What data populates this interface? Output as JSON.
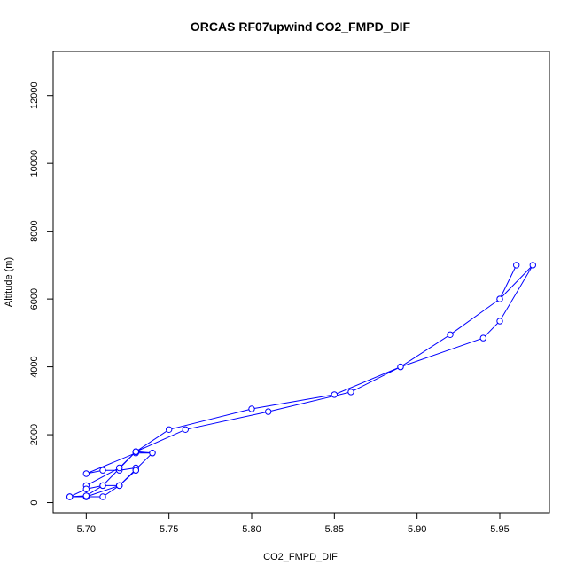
{
  "chart_data": {
    "type": "line",
    "title": "ORCAS RF07upwind CO2_FMPD_DIF",
    "xlabel": "CO2_FMPD_DIF",
    "ylabel": "Altitude (m)",
    "xlim": [
      5.68,
      5.98
    ],
    "ylim": [
      -300,
      13300
    ],
    "xticks": [
      5.7,
      5.75,
      5.8,
      5.85,
      5.9,
      5.95
    ],
    "xtick_labels": [
      "5.70",
      "5.75",
      "5.80",
      "5.85",
      "5.90",
      "5.95"
    ],
    "yticks": [
      0,
      2000,
      4000,
      6000,
      8000,
      10000,
      12000
    ],
    "ytick_labels": [
      "0",
      "2000",
      "4000",
      "6000",
      "8000",
      "10000",
      "12000"
    ],
    "grid": false,
    "marker": "open-circle",
    "series_color": "#0000ff",
    "series": [
      {
        "points": [
          [
            5.69,
            170
          ],
          [
            5.7,
            170
          ],
          [
            5.71,
            170
          ],
          [
            5.72,
            500
          ],
          [
            5.73,
            950
          ],
          [
            5.73,
            1020
          ],
          [
            5.72,
            950
          ],
          [
            5.71,
            950
          ],
          [
            5.7,
            850
          ],
          [
            5.73,
            1460
          ],
          [
            5.74,
            1460
          ],
          [
            5.73,
            1500
          ],
          [
            5.72,
            1020
          ],
          [
            5.7,
            500
          ],
          [
            5.7,
            170
          ],
          [
            5.72,
            500
          ],
          [
            5.74,
            1460
          ],
          [
            5.73,
            1500
          ],
          [
            5.75,
            2150
          ],
          [
            5.8,
            2760
          ],
          [
            5.85,
            3180
          ],
          [
            5.89,
            4000
          ],
          [
            5.92,
            4950
          ],
          [
            5.95,
            6000
          ],
          [
            5.96,
            7000
          ],
          [
            5.95,
            6000
          ],
          [
            5.97,
            7000
          ],
          [
            5.95,
            5350
          ],
          [
            5.94,
            4850
          ],
          [
            5.89,
            4000
          ],
          [
            5.86,
            3260
          ],
          [
            5.81,
            2680
          ],
          [
            5.76,
            2150
          ],
          [
            5.73,
            1500
          ],
          [
            5.71,
            500
          ],
          [
            5.7,
            400
          ],
          [
            5.69,
            170
          ],
          [
            5.7,
            200
          ],
          [
            5.71,
            500
          ],
          [
            5.72,
            500
          ],
          [
            5.73,
            950
          ]
        ]
      }
    ]
  }
}
